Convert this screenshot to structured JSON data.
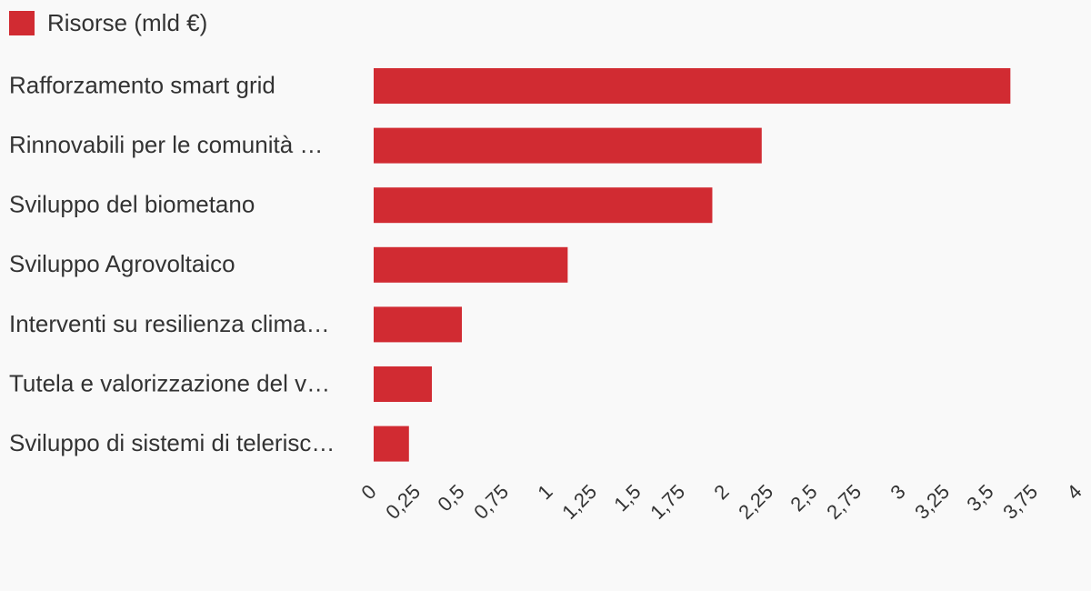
{
  "chart_data": {
    "type": "bar",
    "orientation": "horizontal",
    "categories": [
      "Rafforzamento smart grid",
      "Rinnovabili per le comunità …",
      "Sviluppo del biometano",
      "Sviluppo Agrovoltaico",
      "Interventi su resilienza clima…",
      "Tutela e valorizzazione del v…",
      "Sviluppo di sistemi di telerisc…"
    ],
    "series": [
      {
        "name": "Risorse (mld €)",
        "values": [
          3.61,
          2.2,
          1.92,
          1.1,
          0.5,
          0.33,
          0.2
        ],
        "color": "#d12b32"
      }
    ],
    "xlim": [
      0,
      4
    ],
    "x_ticks": [
      "0",
      "0,25",
      "0,5",
      "0,75",
      "1",
      "1,25",
      "1,5",
      "1,75",
      "2",
      "2,25",
      "2,5",
      "2,75",
      "3",
      "3,25",
      "3,5",
      "3,75",
      "4"
    ],
    "x_tick_step": 0.25,
    "grid": false,
    "legend_position": "top-left",
    "title": "",
    "xlabel": "",
    "ylabel": ""
  }
}
